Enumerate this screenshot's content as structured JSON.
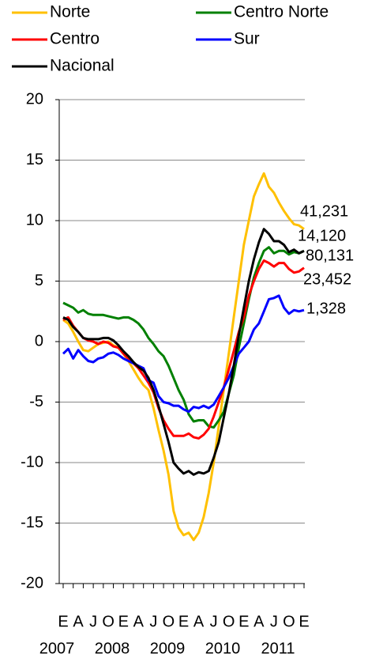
{
  "chart_data": {
    "type": "line",
    "categories": [
      "E",
      null,
      null,
      "A",
      null,
      null,
      "J",
      null,
      null,
      "O",
      null,
      null,
      "E",
      null,
      null,
      "A",
      null,
      null,
      "J",
      null,
      null,
      "O",
      null,
      null,
      "E",
      null,
      null,
      "A",
      null,
      null,
      "J",
      null,
      null,
      "O",
      null,
      null,
      "E",
      null,
      null,
      "A",
      null,
      null,
      "J",
      null,
      null,
      "O",
      null,
      null,
      "E"
    ],
    "year_labels": [
      "2007",
      "2008",
      "2009",
      "2010",
      "2011"
    ],
    "series": [
      {
        "name": "Norte",
        "color": "#ffc000",
        "values": [
          1.8,
          1.5,
          0.8,
          0,
          -0.7,
          -0.8,
          -0.5,
          -0.2,
          -0.1,
          0,
          -0.3,
          -0.5,
          -1.0,
          -1.6,
          -2.3,
          -3.0,
          -3.6,
          -4.0,
          -5.5,
          -7.3,
          -9.0,
          -11.0,
          -14.0,
          -15.4,
          -16.0,
          -15.8,
          -16.4,
          -15.8,
          -14.5,
          -12.5,
          -10,
          -7,
          -4,
          -1,
          2,
          5,
          8,
          10,
          12,
          13.0,
          13.9,
          12.8,
          12.3,
          11.5,
          10.8,
          10.2,
          9.7,
          9.6,
          9.3
        ]
      },
      {
        "name": "Centro Norte",
        "color": "#008000",
        "values": [
          3.2,
          3.0,
          2.8,
          2.4,
          2.6,
          2.3,
          2.2,
          2.2,
          2.2,
          2.1,
          2.0,
          1.9,
          2.0,
          2.0,
          1.8,
          1.5,
          1.0,
          0.3,
          -0.2,
          -0.8,
          -1.2,
          -2.0,
          -3.0,
          -4.0,
          -4.8,
          -6.0,
          -6.6,
          -6.5,
          -6.5,
          -7.0,
          -7.1,
          -6.5,
          -5.8,
          -4.3,
          -2.8,
          -0.5,
          1.5,
          3.5,
          5.3,
          6.5,
          7.5,
          7.8,
          7.3,
          7.5,
          7.5,
          7.2,
          7.4,
          7.3,
          7.5
        ]
      },
      {
        "name": "Centro",
        "color": "#ff0000",
        "values": [
          1.8,
          2.0,
          1.3,
          0.8,
          0.3,
          0.1,
          0.0,
          -0.2,
          0,
          -0.1,
          -0.4,
          -0.5,
          -1.0,
          -1.4,
          -1.8,
          -2.2,
          -2.8,
          -3.4,
          -4.2,
          -5.5,
          -6.5,
          -7.2,
          -7.8,
          -7.8,
          -7.8,
          -7.6,
          -7.9,
          -8.0,
          -7.7,
          -7.2,
          -6.2,
          -5.0,
          -3.8,
          -2.3,
          -0.8,
          0.8,
          2.0,
          3.8,
          5.0,
          6.0,
          6.7,
          6.5,
          6.2,
          6.5,
          6.5,
          6.0,
          5.7,
          5.8,
          6.1
        ]
      },
      {
        "name": "Sur",
        "color": "#0000ff",
        "values": [
          -1.0,
          -0.6,
          -1.4,
          -0.7,
          -1.2,
          -1.6,
          -1.7,
          -1.4,
          -1.3,
          -1.0,
          -0.9,
          -1.1,
          -1.4,
          -1.6,
          -1.8,
          -2.0,
          -2.2,
          -3.2,
          -3.4,
          -4.5,
          -5.0,
          -5.1,
          -5.3,
          -5.3,
          -5.6,
          -5.8,
          -5.4,
          -5.5,
          -5.3,
          -5.5,
          -5.2,
          -4.5,
          -3.8,
          -3.0,
          -2.0,
          -1.0,
          -0.5,
          0.0,
          1.0,
          1.5,
          2.5,
          3.5,
          3.6,
          3.8,
          2.8,
          2.3,
          2.6,
          2.5,
          2.6
        ]
      },
      {
        "name": "Nacional",
        "color": "#000000",
        "values": [
          2.0,
          1.8,
          1.2,
          0.8,
          0.3,
          0.2,
          0.2,
          0.2,
          0.3,
          0.3,
          0.1,
          -0.3,
          -0.8,
          -1.2,
          -1.7,
          -2.1,
          -2.4,
          -3.0,
          -4.0,
          -5.3,
          -6.8,
          -8.3,
          -10.0,
          -10.5,
          -10.9,
          -10.7,
          -11.0,
          -10.8,
          -10.9,
          -10.7,
          -9.6,
          -8.3,
          -6.3,
          -4.3,
          -2.0,
          0.5,
          2.8,
          5.0,
          6.8,
          8.2,
          9.3,
          8.9,
          8.3,
          8.3,
          8.0,
          7.4,
          7.6,
          7.3,
          7.5
        ]
      }
    ],
    "annotations": [
      {
        "text": "41,231",
        "color": "#ffc000"
      },
      {
        "text": "14,120",
        "color": "#008000"
      },
      {
        "text": "80,131",
        "color": "#000000"
      },
      {
        "text": "23,452",
        "color": "#ff0000"
      },
      {
        "text": "1,328",
        "color": "#0000ff"
      }
    ],
    "ylim": [
      -20,
      20
    ],
    "yticks": [
      -20,
      -15,
      -10,
      -5,
      0,
      5,
      10,
      15,
      20
    ],
    "grid": true
  }
}
